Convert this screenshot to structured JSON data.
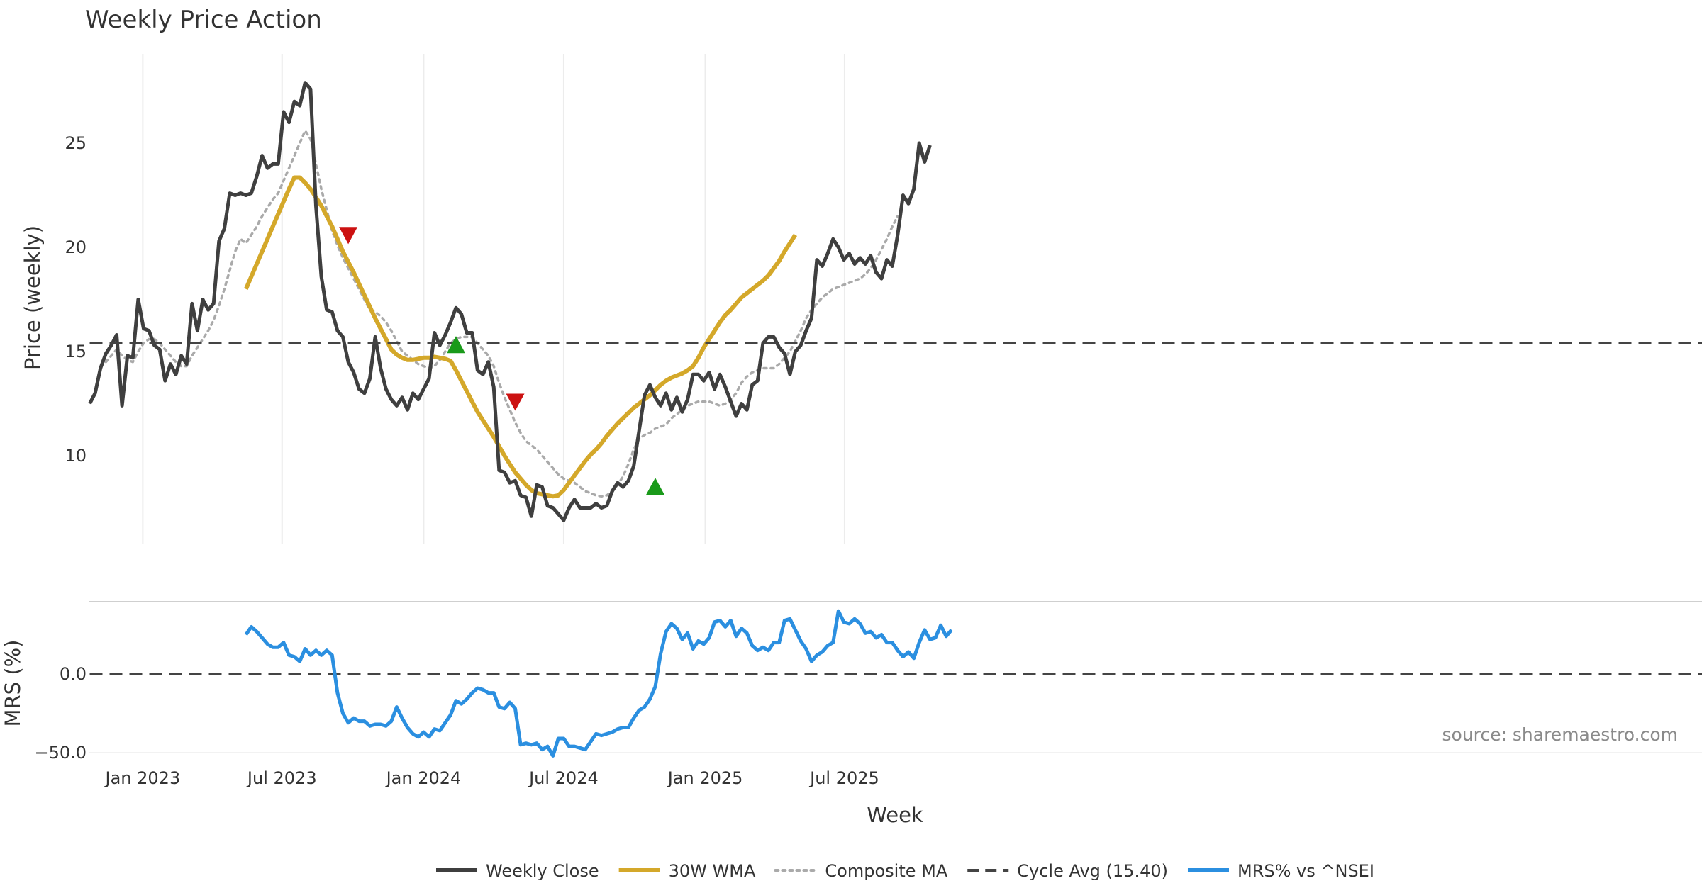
{
  "title": "Weekly Price Action",
  "source": "source: sharemaestro.com",
  "colors": {
    "close": "#3f3f3f",
    "wma": "#d4a82a",
    "composite": "#aaaaaa",
    "cycle": "#444444",
    "mrs": "#2b8fe0",
    "buy": "#1a9a1a",
    "sell": "#cc1111",
    "grid": "#ececec"
  },
  "chart_data": [
    {
      "type": "line",
      "title": "Weekly Price Action",
      "xlabel": "",
      "ylabel": "Price (weekly)",
      "x_ticks": [
        "Jan 2023",
        "Jul 2023",
        "Jan 2024",
        "Jul 2024",
        "Jan 2025",
        "Jul 2025"
      ],
      "y_ticks": [
        10,
        15,
        20,
        25
      ],
      "ylim": [
        5.5,
        29.0
      ],
      "grid": "vertical",
      "start_week": "2022-10-24",
      "cycle_avg": 15.4,
      "series": [
        {
          "name": "Weekly Close",
          "start_index": 0,
          "values": [
            12.5,
            13.0,
            14.2,
            14.9,
            15.3,
            15.8,
            12.4,
            14.8,
            14.7,
            17.5,
            16.1,
            16.0,
            15.3,
            15.1,
            13.6,
            14.4,
            13.9,
            14.8,
            14.4,
            17.3,
            16.0,
            17.5,
            17.0,
            17.3,
            20.3,
            20.9,
            22.6,
            22.5,
            22.6,
            22.5,
            22.6,
            23.4,
            24.4,
            23.8,
            24.0,
            24.0,
            26.5,
            26.0,
            27.0,
            26.8,
            27.9,
            27.6,
            22.0,
            18.6,
            17.0,
            16.9,
            16.0,
            15.7,
            14.5,
            14.0,
            13.2,
            13.0,
            13.7,
            15.7,
            14.2,
            13.2,
            12.7,
            12.4,
            12.8,
            12.2,
            13.0,
            12.7,
            13.2,
            13.7,
            15.9,
            15.3,
            15.8,
            16.4,
            17.1,
            16.8,
            15.9,
            15.9,
            14.1,
            13.9,
            14.5,
            13.3,
            9.3,
            9.2,
            8.7,
            8.8,
            8.1,
            8.0,
            7.1,
            8.6,
            8.5,
            7.6,
            7.5,
            7.2,
            6.9,
            7.5,
            7.9,
            7.5,
            7.5,
            7.5,
            7.7,
            7.5,
            7.6,
            8.3,
            8.7,
            8.5,
            8.8,
            9.5,
            11.2,
            12.9,
            13.4,
            12.8,
            12.4,
            13.0,
            12.2,
            12.8,
            12.1,
            12.7,
            13.9,
            13.9,
            13.6,
            14.0,
            13.2,
            13.9,
            13.3,
            12.6,
            11.9,
            12.5,
            12.2,
            13.4,
            13.6,
            15.4,
            15.7,
            15.7,
            15.2,
            14.9,
            13.9,
            15.0,
            15.3,
            16.0,
            16.6,
            19.4,
            19.1,
            19.7,
            20.4,
            20.0,
            19.4,
            19.7,
            19.2,
            19.5,
            19.2,
            19.6,
            18.8,
            18.5,
            19.4,
            19.1,
            20.6,
            22.5,
            22.1,
            22.8,
            25.0,
            24.1,
            24.9
          ]
        },
        {
          "name": "30W WMA",
          "start_index": 29,
          "values": [
            18.0,
            18.6,
            19.2,
            19.8,
            20.4,
            21.0,
            21.6,
            22.2,
            22.8,
            23.35,
            23.35,
            23.1,
            22.8,
            22.4,
            22.0,
            21.5,
            21.0,
            20.4,
            19.8,
            19.3,
            18.8,
            18.25,
            17.7,
            17.15,
            16.6,
            16.1,
            15.6,
            15.1,
            14.85,
            14.7,
            14.6,
            14.6,
            14.65,
            14.7,
            14.7,
            14.75,
            14.7,
            14.65,
            14.55,
            14.1,
            13.6,
            13.1,
            12.6,
            12.1,
            11.7,
            11.3,
            10.9,
            10.45,
            10.0,
            9.6,
            9.2,
            8.9,
            8.6,
            8.35,
            8.2,
            8.15,
            8.1,
            8.05,
            8.1,
            8.35,
            8.7,
            9.05,
            9.4,
            9.75,
            10.05,
            10.3,
            10.6,
            10.95,
            11.25,
            11.55,
            11.8,
            12.05,
            12.3,
            12.5,
            12.7,
            12.9,
            13.15,
            13.4,
            13.6,
            13.75,
            13.85,
            13.95,
            14.1,
            14.3,
            14.7,
            15.2,
            15.6,
            16.0,
            16.4,
            16.75,
            17.0,
            17.3,
            17.6,
            17.8,
            18.0,
            18.2,
            18.4,
            18.65,
            19.0,
            19.35,
            19.8,
            20.2,
            20.6
          ]
        },
        {
          "name": "Composite MA",
          "start_index": 3,
          "values": [
            14.5,
            14.8,
            15.1,
            14.8,
            14.6,
            14.5,
            15.0,
            15.4,
            15.6,
            15.6,
            15.4,
            15.1,
            14.8,
            14.5,
            14.3,
            14.3,
            14.8,
            15.2,
            15.6,
            16.0,
            16.5,
            17.2,
            18.0,
            18.9,
            19.8,
            20.4,
            20.2,
            20.6,
            21.0,
            21.5,
            21.9,
            22.3,
            22.6,
            23.2,
            23.8,
            24.4,
            25.0,
            25.6,
            25.2,
            24.0,
            22.8,
            21.8,
            20.8,
            20.1,
            19.5,
            19.0,
            18.5,
            18.0,
            17.5,
            17.0,
            16.9,
            16.7,
            16.4,
            16.0,
            15.5,
            15.0,
            14.8,
            14.6,
            14.4,
            14.3,
            14.2,
            14.3,
            14.6,
            15.0,
            15.4,
            15.6,
            15.7,
            15.7,
            15.7,
            15.4,
            15.1,
            14.8,
            14.3,
            13.5,
            12.8,
            12.2,
            11.6,
            11.1,
            10.7,
            10.5,
            10.3,
            10.0,
            9.7,
            9.4,
            9.1,
            8.9,
            8.8,
            8.7,
            8.5,
            8.3,
            8.2,
            8.1,
            8.05,
            8.1,
            8.3,
            8.6,
            9.0,
            9.6,
            10.3,
            10.8,
            11.0,
            11.1,
            11.3,
            11.4,
            11.5,
            11.8,
            12.0,
            12.2,
            12.4,
            12.5,
            12.6,
            12.6,
            12.6,
            12.5,
            12.4,
            12.5,
            12.7,
            13.0,
            13.5,
            13.8,
            14.0,
            14.1,
            14.2,
            14.2,
            14.2,
            14.4,
            14.7,
            15.0,
            15.5,
            16.0,
            16.6,
            17.0,
            17.3,
            17.6,
            17.8,
            18.0,
            18.1,
            18.2,
            18.3,
            18.4,
            18.5,
            18.7,
            19.0,
            19.4,
            19.9,
            20.4,
            21.0,
            21.5
          ]
        },
        {
          "name": "Cycle Avg (15.40)",
          "type": "hline",
          "value": 15.4
        }
      ],
      "markers": [
        {
          "type": "sell",
          "index": 48,
          "value": 20.6
        },
        {
          "type": "buy",
          "index": 68,
          "value": 15.3
        },
        {
          "type": "sell",
          "index": 79,
          "value": 12.6
        },
        {
          "type": "buy",
          "index": 105,
          "value": 8.5
        }
      ]
    },
    {
      "type": "line",
      "xlabel": "Week",
      "ylabel": "MRS (%)",
      "x_ticks": [
        "Jan 2023",
        "Jul 2023",
        "Jan 2024",
        "Jul 2024",
        "Jan 2025",
        "Jul 2025"
      ],
      "y_ticks": [
        {
          "value": 0,
          "label": "0.0"
        },
        {
          "value": -50,
          "label": "−50.0"
        }
      ],
      "ylim": [
        -52,
        45
      ],
      "zero_line": 0,
      "series": [
        {
          "name": "MRS% vs ^NSEI",
          "start_index": 29,
          "values": [
            25,
            30,
            27,
            23,
            19,
            17,
            17,
            20,
            12,
            11,
            8,
            16,
            12,
            15,
            12,
            15,
            12,
            -12,
            -25,
            -31,
            -28,
            -30,
            -30,
            -33,
            -32,
            -32,
            -33,
            -30,
            -21,
            -28,
            -34,
            -38,
            -40,
            -37,
            -40,
            -35,
            -36,
            -31,
            -26,
            -17,
            -19,
            -16,
            -12,
            -9,
            -10,
            -12,
            -12,
            -21,
            -22,
            -18,
            -22,
            -45,
            -44,
            -45,
            -44,
            -48,
            -46,
            -52,
            -41,
            -41,
            -46,
            -46,
            -47,
            -48,
            -43,
            -38,
            -39,
            -38,
            -37,
            -35,
            -34,
            -34,
            -28,
            -23,
            -21,
            -16,
            -8,
            13,
            27,
            32,
            29,
            22,
            26,
            16,
            21,
            19,
            23,
            33,
            34,
            30,
            34,
            24,
            29,
            26,
            18,
            15,
            17,
            15,
            20,
            20,
            34,
            35,
            28,
            21,
            16,
            8,
            12,
            14,
            18,
            20,
            40,
            33,
            32,
            35,
            32,
            26,
            27,
            23,
            25,
            20,
            20,
            15,
            11,
            14,
            10,
            20,
            28,
            22,
            23,
            31,
            24,
            28
          ]
        }
      ]
    }
  ],
  "legend": {
    "placement": "bottom-center",
    "items": [
      {
        "label": "Weekly Close",
        "style": "solid",
        "color": "#3f3f3f"
      },
      {
        "label": "30W WMA",
        "style": "solid",
        "color": "#d4a82a"
      },
      {
        "label": "Composite MA",
        "style": "dotted",
        "color": "#aaaaaa"
      },
      {
        "label": "Cycle Avg (15.40)",
        "style": "dashed",
        "color": "#444444"
      },
      {
        "label": "MRS% vs ^NSEI",
        "style": "solid",
        "color": "#2b8fe0"
      }
    ]
  }
}
